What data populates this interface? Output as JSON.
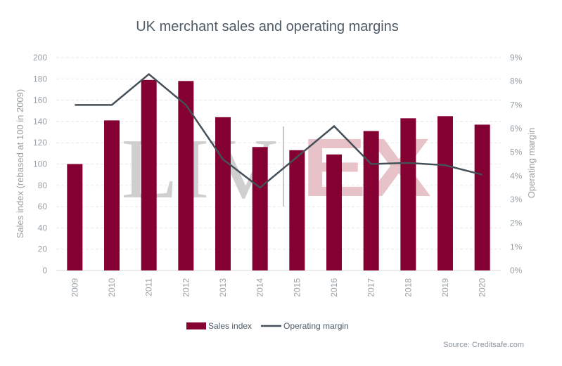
{
  "chart_data": {
    "type": "bar",
    "title": "UK merchant sales and operating margins",
    "categories": [
      "2009",
      "2010",
      "2011",
      "2012",
      "2013",
      "2014",
      "2015",
      "2016",
      "2017",
      "2018",
      "2019",
      "2020"
    ],
    "series": [
      {
        "name": "Sales index",
        "type": "bar",
        "axis": "left",
        "values": [
          100,
          141,
          179,
          178,
          144,
          116,
          113,
          109,
          131,
          143,
          145,
          137
        ]
      },
      {
        "name": "Operating margin",
        "type": "line",
        "axis": "right",
        "values": [
          7.0,
          7.0,
          8.3,
          7.0,
          4.7,
          3.5,
          4.8,
          6.1,
          4.5,
          4.55,
          4.45,
          4.05
        ]
      }
    ],
    "ylabel": "Sales index (rebased at 100 in 2009)",
    "y2label": "Operating margin",
    "ylim": [
      0,
      200
    ],
    "y2lim": [
      0,
      9
    ],
    "yticks": [
      "0",
      "20",
      "40",
      "60",
      "80",
      "100",
      "120",
      "140",
      "160",
      "180",
      "200"
    ],
    "y2ticks": [
      "0%",
      "1%",
      "2%",
      "3%",
      "4%",
      "5%",
      "6%",
      "7%",
      "8%",
      "9%"
    ],
    "grid": true,
    "legend_position": "bottom",
    "bar_color": "#840032",
    "line_color": "#454f58"
  },
  "watermark": {
    "left": "LIV",
    "right": "EX"
  },
  "source": "Source: Creditsafe.com"
}
